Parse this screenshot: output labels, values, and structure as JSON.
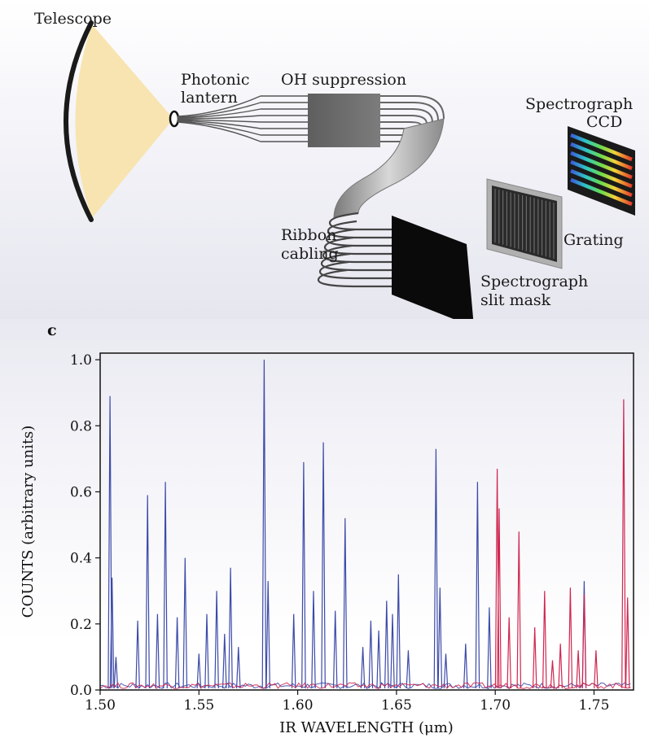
{
  "diagram": {
    "labels": {
      "telescope": "Telescope",
      "photonic_line1": "Photonic",
      "photonic_line2": "lantern",
      "oh_suppression": "OH suppression",
      "spectrograph_ccd_line1": "Spectrograph",
      "spectrograph_ccd_line2": "CCD",
      "grating": "Grating",
      "ribbon_line1": "Ribbon",
      "ribbon_line2": "cabling",
      "slit_mask_line1": "Spectrograph",
      "slit_mask_line2": "slit mask"
    }
  },
  "panel_label": "c",
  "colors": {
    "telescope_beam": "#f8e4b0",
    "oh_block": "#6e6e6e",
    "blue_series": "#3c4aa8",
    "red_series": "#d0264f"
  },
  "chart_data": {
    "type": "line",
    "xlabel": "IR WAVELENGTH (μm)",
    "ylabel": "COUNTS (arbitrary units)",
    "xlim": [
      1.5,
      1.77
    ],
    "ylim": [
      0,
      1.02
    ],
    "x_ticks": [
      1.5,
      1.55,
      1.6,
      1.65,
      1.7,
      1.75
    ],
    "x_tick_labels": [
      "1.50",
      "1.55",
      "1.60",
      "1.65",
      "1.70",
      "1.75"
    ],
    "y_ticks": [
      0,
      0.2,
      0.4,
      0.6,
      0.8,
      1.0
    ],
    "y_tick_labels": [
      "0.0",
      "0.2",
      "0.4",
      "0.6",
      "0.8",
      "1.0"
    ],
    "series": [
      {
        "color": "#3c4aa8",
        "peaks": [
          [
            1.505,
            0.89
          ],
          [
            1.506,
            0.34
          ],
          [
            1.508,
            0.1
          ],
          [
            1.519,
            0.21
          ],
          [
            1.524,
            0.59
          ],
          [
            1.529,
            0.23
          ],
          [
            1.533,
            0.63
          ],
          [
            1.539,
            0.22
          ],
          [
            1.543,
            0.4
          ],
          [
            1.55,
            0.11
          ],
          [
            1.554,
            0.23
          ],
          [
            1.559,
            0.3
          ],
          [
            1.563,
            0.17
          ],
          [
            1.566,
            0.37
          ],
          [
            1.57,
            0.13
          ],
          [
            1.583,
            1.0
          ],
          [
            1.585,
            0.33
          ],
          [
            1.598,
            0.23
          ],
          [
            1.603,
            0.69
          ],
          [
            1.608,
            0.3
          ],
          [
            1.613,
            0.75
          ],
          [
            1.619,
            0.24
          ],
          [
            1.624,
            0.52
          ],
          [
            1.633,
            0.13
          ],
          [
            1.637,
            0.21
          ],
          [
            1.641,
            0.18
          ],
          [
            1.645,
            0.27
          ],
          [
            1.648,
            0.23
          ],
          [
            1.651,
            0.35
          ],
          [
            1.656,
            0.12
          ],
          [
            1.67,
            0.73
          ],
          [
            1.672,
            0.31
          ],
          [
            1.675,
            0.11
          ],
          [
            1.685,
            0.14
          ],
          [
            1.691,
            0.63
          ],
          [
            1.697,
            0.25
          ],
          [
            1.745,
            0.33
          ]
        ]
      },
      {
        "color": "#d0264f",
        "peaks": [
          [
            1.701,
            0.67
          ],
          [
            1.702,
            0.55
          ],
          [
            1.707,
            0.22
          ],
          [
            1.712,
            0.48
          ],
          [
            1.72,
            0.19
          ],
          [
            1.725,
            0.3
          ],
          [
            1.729,
            0.09
          ],
          [
            1.733,
            0.14
          ],
          [
            1.738,
            0.31
          ],
          [
            1.742,
            0.12
          ],
          [
            1.745,
            0.29
          ],
          [
            1.751,
            0.12
          ],
          [
            1.765,
            0.88
          ],
          [
            1.767,
            0.28
          ]
        ]
      }
    ]
  }
}
